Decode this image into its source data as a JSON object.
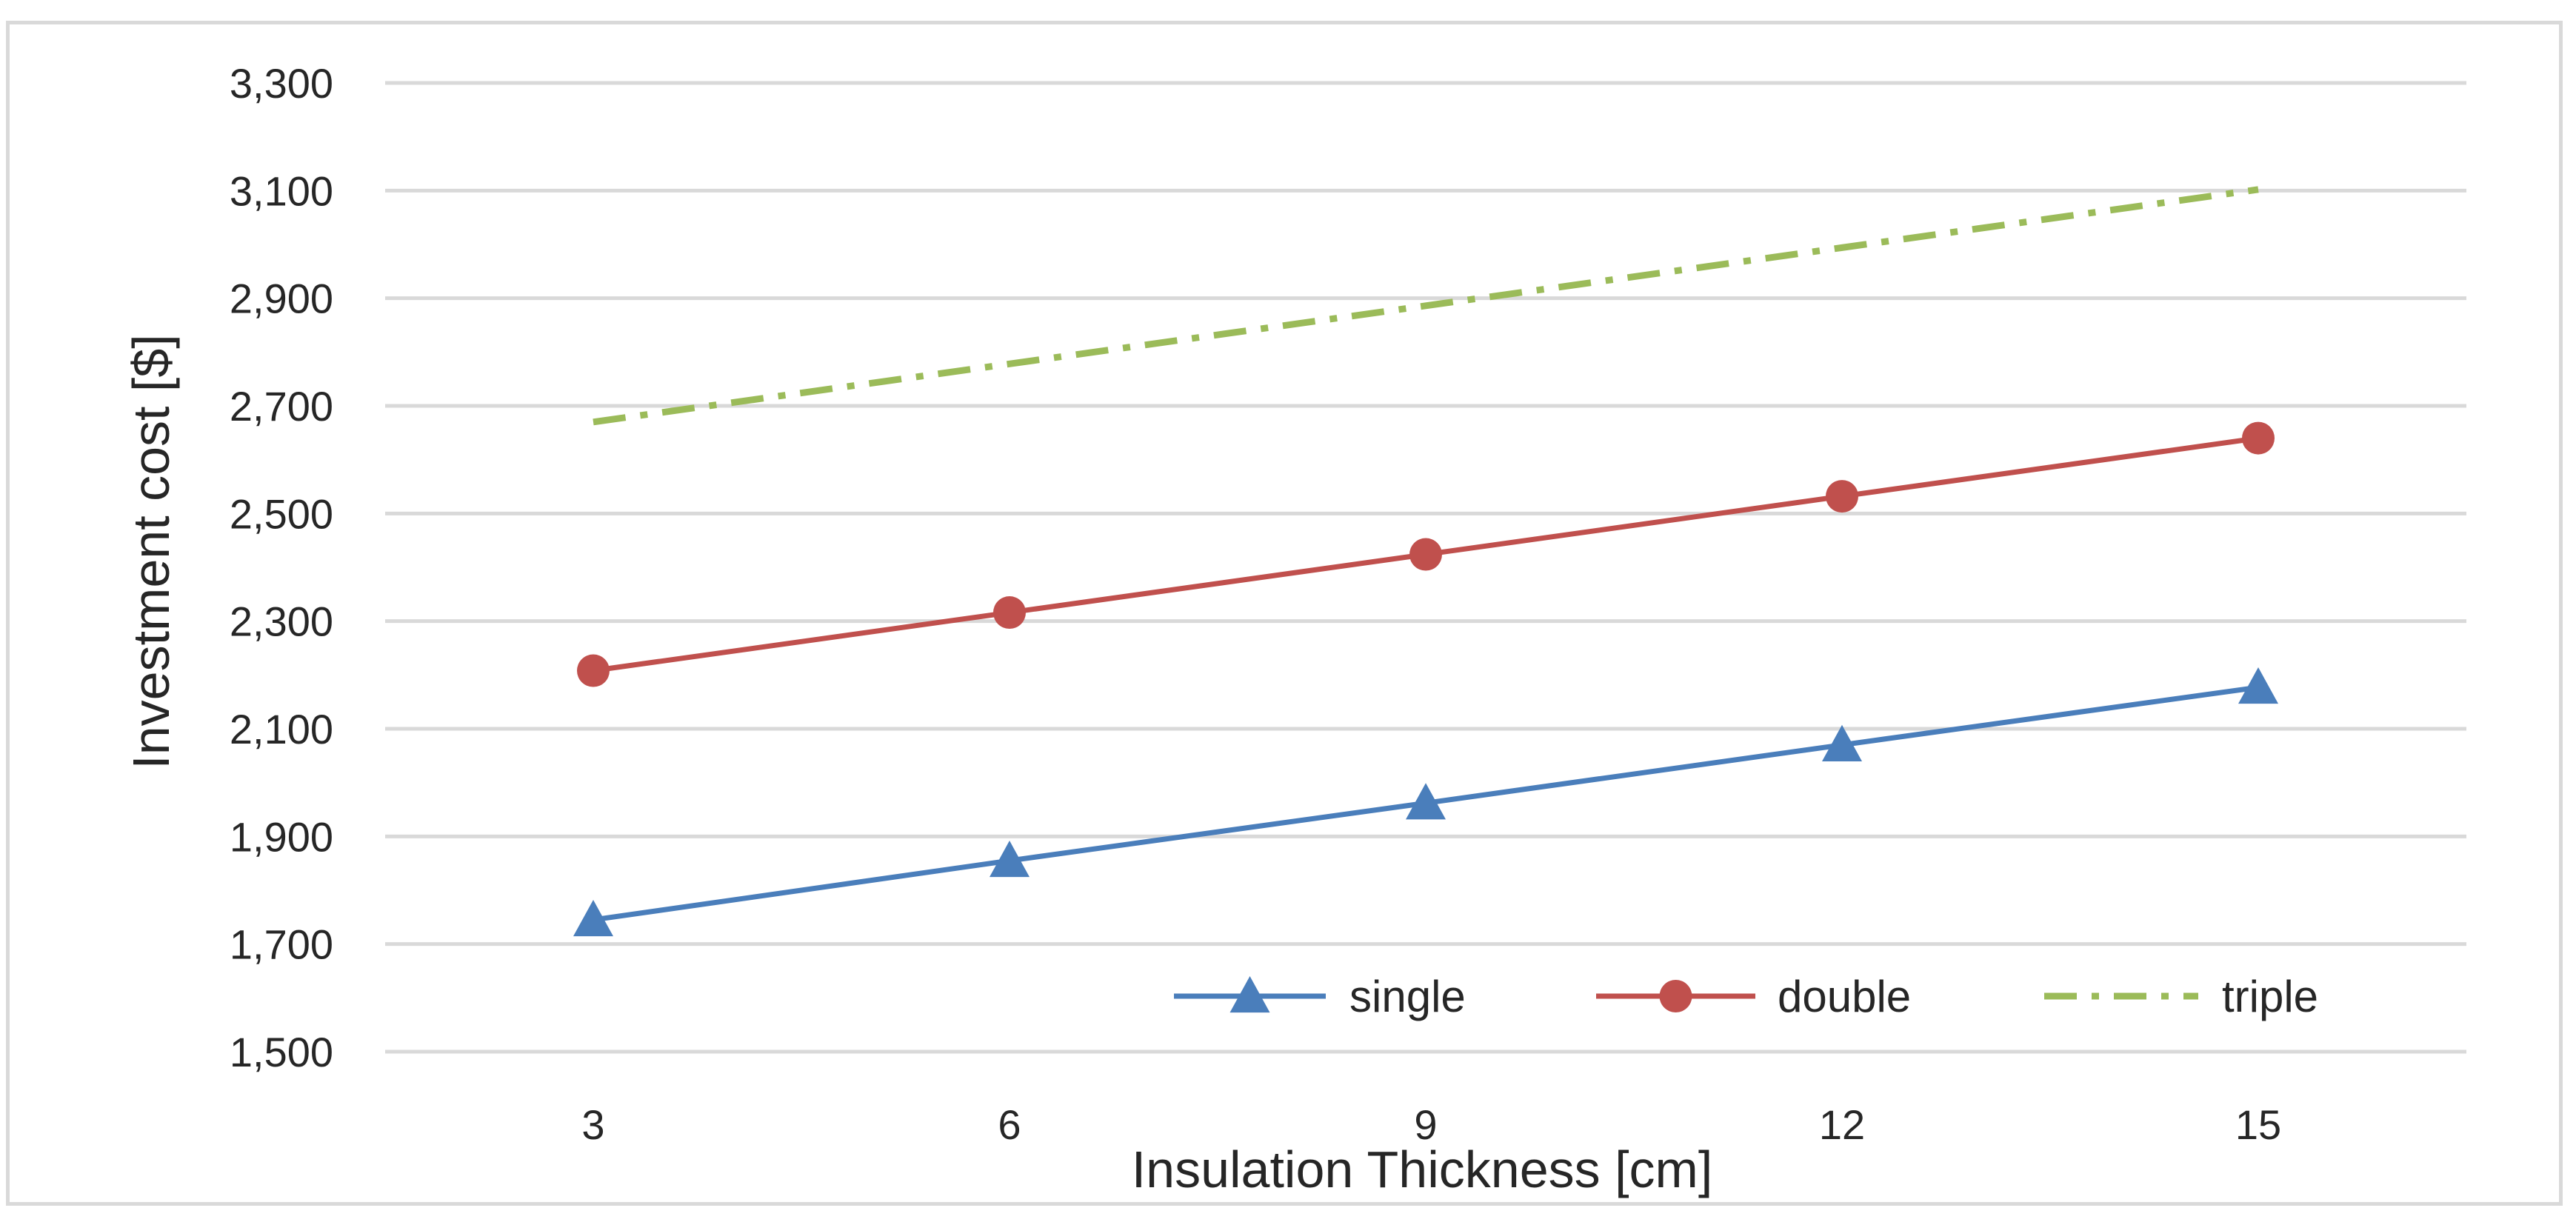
{
  "chart_data": {
    "type": "line",
    "title": "",
    "xlabel": "Insulation Thickness [cm]",
    "ylabel": "Investment cost [$]",
    "categories": [
      "3",
      "6",
      "9",
      "12",
      "15"
    ],
    "y_ticks": [
      "1,500",
      "1,700",
      "1,900",
      "2,100",
      "2,300",
      "2,500",
      "2,700",
      "2,900",
      "3,100",
      "3,300"
    ],
    "y_tick_values": [
      1500,
      1700,
      1900,
      2100,
      2300,
      2500,
      2700,
      2900,
      3100,
      3300
    ],
    "ylim": [
      1500,
      3300
    ],
    "grid": true,
    "legend_position": "bottom-right",
    "series": [
      {
        "name": "single",
        "color": "#4a7ebb",
        "marker": "triangle",
        "dash": "solid",
        "values": [
          1745,
          1855,
          1962,
          2070,
          2177
        ]
      },
      {
        "name": "double",
        "color": "#c0504d",
        "marker": "circle",
        "dash": "solid",
        "values": [
          2208,
          2316,
          2424,
          2532,
          2640
        ]
      },
      {
        "name": "triple",
        "color": "#9bbb59",
        "marker": "none",
        "dash": "dashdot",
        "values": [
          2670,
          2778,
          2886,
          2994,
          3102
        ]
      }
    ]
  }
}
